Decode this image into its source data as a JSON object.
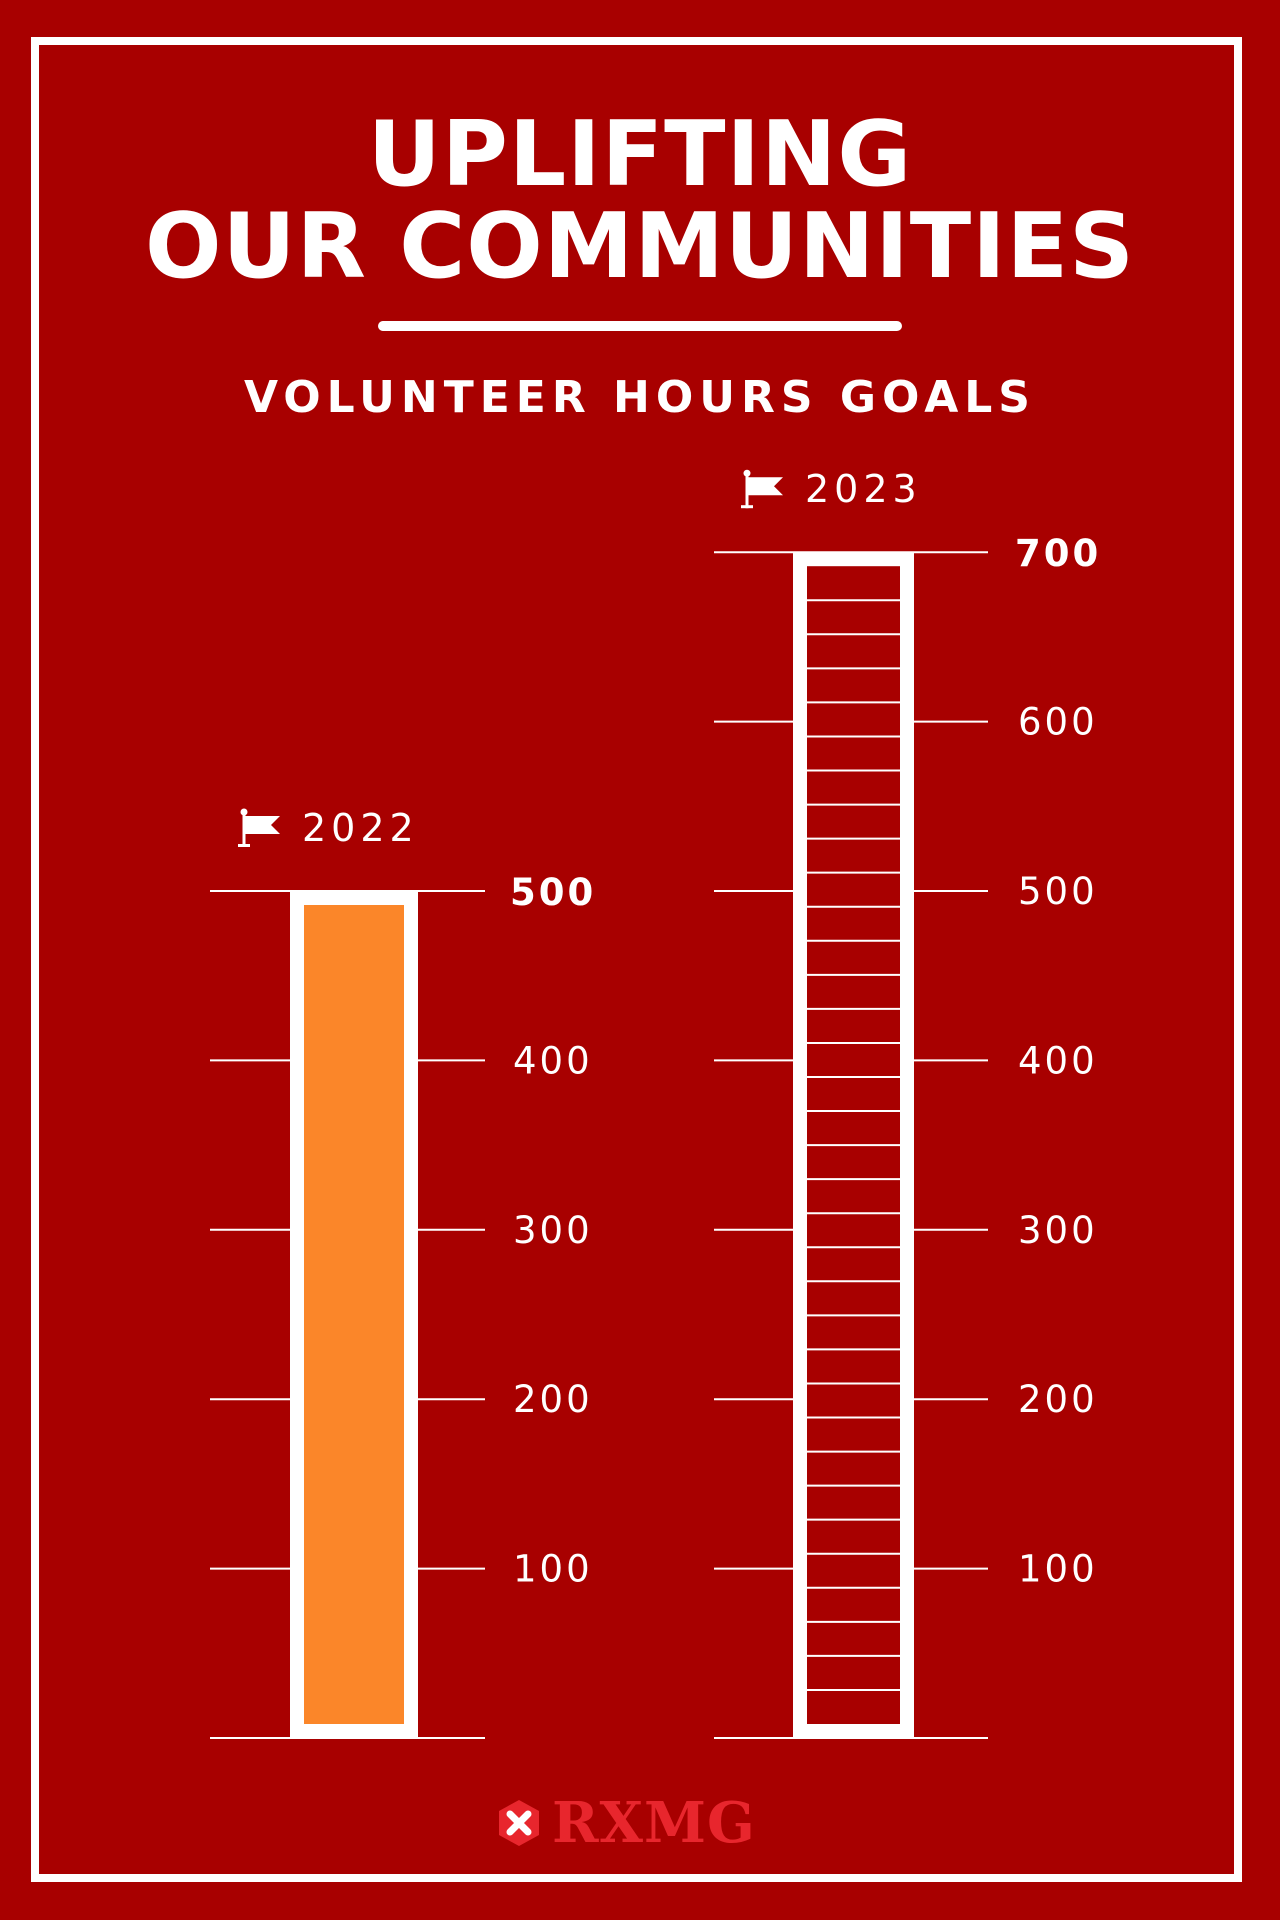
{
  "header": {
    "title_line1": "UPLIFTING",
    "title_line2": "OUR COMMUNITIES",
    "subtitle": "VOLUNTEER HOURS GOALS"
  },
  "colors": {
    "background": "#a80000",
    "foreground": "#ffffff",
    "fill": "#fb8629",
    "logo": "#e8262d"
  },
  "chart_data": {
    "type": "bar",
    "title": "VOLUNTEER HOURS GOALS",
    "ylim": [
      0,
      700
    ],
    "categories": [
      "2022",
      "2023"
    ],
    "series": [
      {
        "label": "2022",
        "icon": "flag-icon",
        "goal": 500,
        "goal_label": "500",
        "filled_fraction": 1,
        "ticks": [
          "100",
          "200",
          "300",
          "400"
        ]
      },
      {
        "label": "2023",
        "icon": "flag-icon",
        "goal": 700,
        "goal_label": "700",
        "filled_fraction": 0,
        "ticks": [
          "100",
          "200",
          "300",
          "400",
          "500",
          "600"
        ]
      }
    ]
  },
  "footer": {
    "logo_text": "RXMG"
  }
}
